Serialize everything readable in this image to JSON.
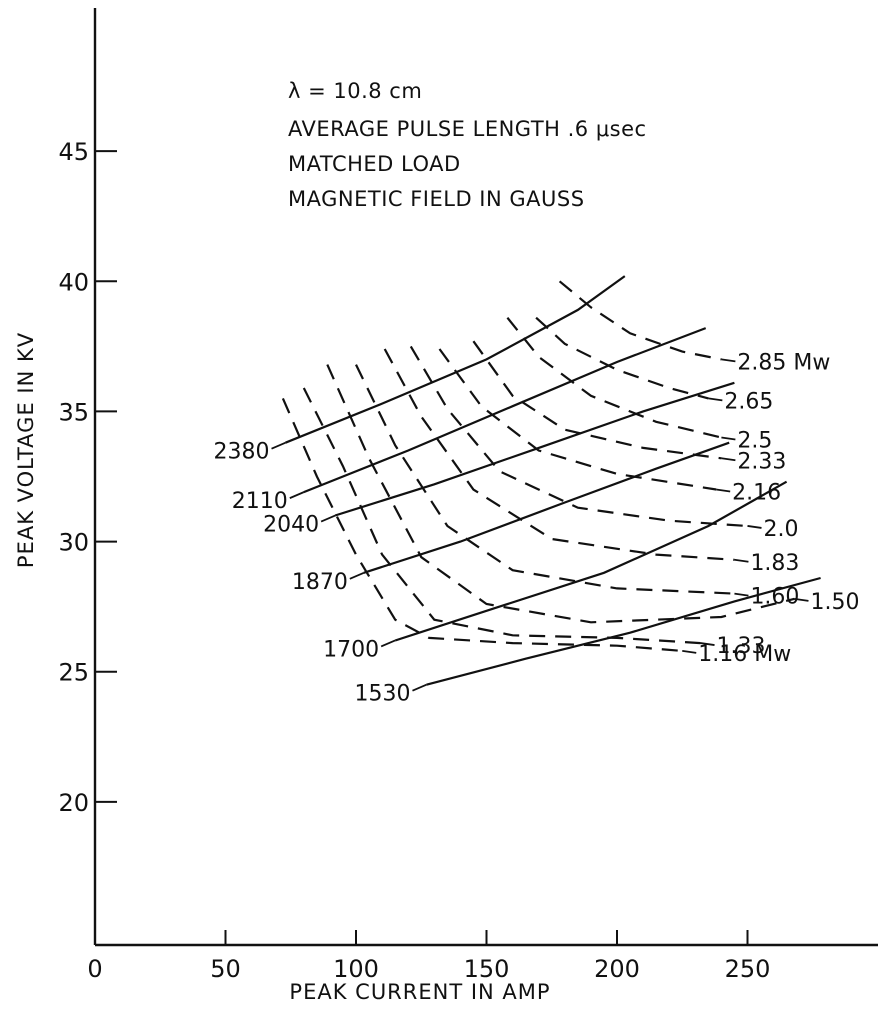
{
  "chart_data": {
    "type": "line",
    "xlabel": "PEAK CURRENT IN AMP",
    "ylabel": "PEAK VOLTAGE IN KV",
    "xlim": [
      0,
      300
    ],
    "ylim": [
      14.5,
      50.5
    ],
    "xticks": [
      0,
      50,
      100,
      150,
      200,
      250
    ],
    "yticks": [
      20,
      25,
      30,
      35,
      40,
      45
    ],
    "annotations": [
      "λ = 10.8 cm",
      "AVERAGE PULSE LENGTH .6 μsec",
      "MATCHED LOAD",
      "MAGNETIC FIELD IN GAUSS"
    ],
    "field_curves": [
      {
        "label": "2380",
        "points": [
          [
            73,
            33.8
          ],
          [
            110,
            35.3
          ],
          [
            150,
            37.0
          ],
          [
            185,
            38.9
          ],
          [
            203,
            40.2
          ]
        ]
      },
      {
        "label": "2110",
        "points": [
          [
            80,
            31.9
          ],
          [
            120,
            33.5
          ],
          [
            160,
            35.2
          ],
          [
            200,
            36.9
          ],
          [
            234,
            38.2
          ]
        ]
      },
      {
        "label": "2040",
        "points": [
          [
            92,
            31.0
          ],
          [
            130,
            32.2
          ],
          [
            170,
            33.6
          ],
          [
            210,
            35.0
          ],
          [
            245,
            36.1
          ]
        ]
      },
      {
        "label": "1870",
        "points": [
          [
            103,
            28.8
          ],
          [
            140,
            30.0
          ],
          [
            180,
            31.5
          ],
          [
            215,
            32.8
          ],
          [
            243,
            33.8
          ]
        ]
      },
      {
        "label": "1700",
        "points": [
          [
            115,
            26.2
          ],
          [
            155,
            27.5
          ],
          [
            195,
            28.8
          ],
          [
            235,
            30.6
          ],
          [
            265,
            32.3
          ]
        ]
      },
      {
        "label": "1530",
        "points": [
          [
            127,
            24.5
          ],
          [
            165,
            25.5
          ],
          [
            205,
            26.5
          ],
          [
            245,
            27.7
          ],
          [
            278,
            28.6
          ]
        ]
      }
    ],
    "power_curves": [
      {
        "label": "2.85 Mw",
        "points": [
          [
            178,
            40.0
          ],
          [
            190,
            39.0
          ],
          [
            205,
            38.0
          ],
          [
            225,
            37.3
          ],
          [
            240,
            37.0
          ]
        ]
      },
      {
        "label": "2.65",
        "points": [
          [
            169,
            38.6
          ],
          [
            180,
            37.6
          ],
          [
            200,
            36.6
          ],
          [
            220,
            35.9
          ],
          [
            235,
            35.5
          ]
        ]
      },
      {
        "label": "2.5",
        "points": [
          [
            158,
            38.6
          ],
          [
            170,
            37.1
          ],
          [
            190,
            35.6
          ],
          [
            215,
            34.6
          ],
          [
            240,
            34.0
          ]
        ]
      },
      {
        "label": "2.33",
        "points": [
          [
            145,
            37.7
          ],
          [
            160,
            35.6
          ],
          [
            180,
            34.3
          ],
          [
            210,
            33.6
          ],
          [
            240,
            33.2
          ]
        ]
      },
      {
        "label": "2.16",
        "points": [
          [
            132,
            37.4
          ],
          [
            148,
            35.2
          ],
          [
            170,
            33.5
          ],
          [
            200,
            32.6
          ],
          [
            238,
            32.0
          ]
        ]
      },
      {
        "label": "2.0",
        "points": [
          [
            121,
            37.5
          ],
          [
            135,
            35.1
          ],
          [
            155,
            32.7
          ],
          [
            185,
            31.3
          ],
          [
            220,
            30.8
          ],
          [
            250,
            30.6
          ]
        ]
      },
      {
        "label": "1.83",
        "points": [
          [
            111,
            37.4
          ],
          [
            125,
            34.8
          ],
          [
            145,
            32.0
          ],
          [
            175,
            30.1
          ],
          [
            215,
            29.5
          ],
          [
            245,
            29.3
          ]
        ]
      },
      {
        "label": "1.60",
        "points": [
          [
            100,
            36.8
          ],
          [
            115,
            33.7
          ],
          [
            135,
            30.6
          ],
          [
            160,
            28.9
          ],
          [
            200,
            28.2
          ],
          [
            245,
            28.0
          ]
        ]
      },
      {
        "label": "1.50",
        "points": [
          [
            89,
            36.8
          ],
          [
            105,
            33.2
          ],
          [
            125,
            29.4
          ],
          [
            150,
            27.6
          ],
          [
            190,
            26.9
          ],
          [
            240,
            27.1
          ],
          [
            268,
            27.8
          ]
        ]
      },
      {
        "label": "1.33",
        "points": [
          [
            80,
            35.9
          ],
          [
            95,
            32.9
          ],
          [
            110,
            29.5
          ],
          [
            130,
            27.0
          ],
          [
            160,
            26.4
          ],
          [
            200,
            26.3
          ],
          [
            232,
            26.1
          ]
        ]
      },
      {
        "label": "1.16 Mw",
        "points": [
          [
            72,
            35.5
          ],
          [
            85,
            32.5
          ],
          [
            100,
            29.5
          ],
          [
            115,
            27.0
          ],
          [
            128,
            26.3
          ],
          [
            160,
            26.1
          ],
          [
            200,
            26.0
          ],
          [
            225,
            25.8
          ]
        ]
      }
    ]
  }
}
